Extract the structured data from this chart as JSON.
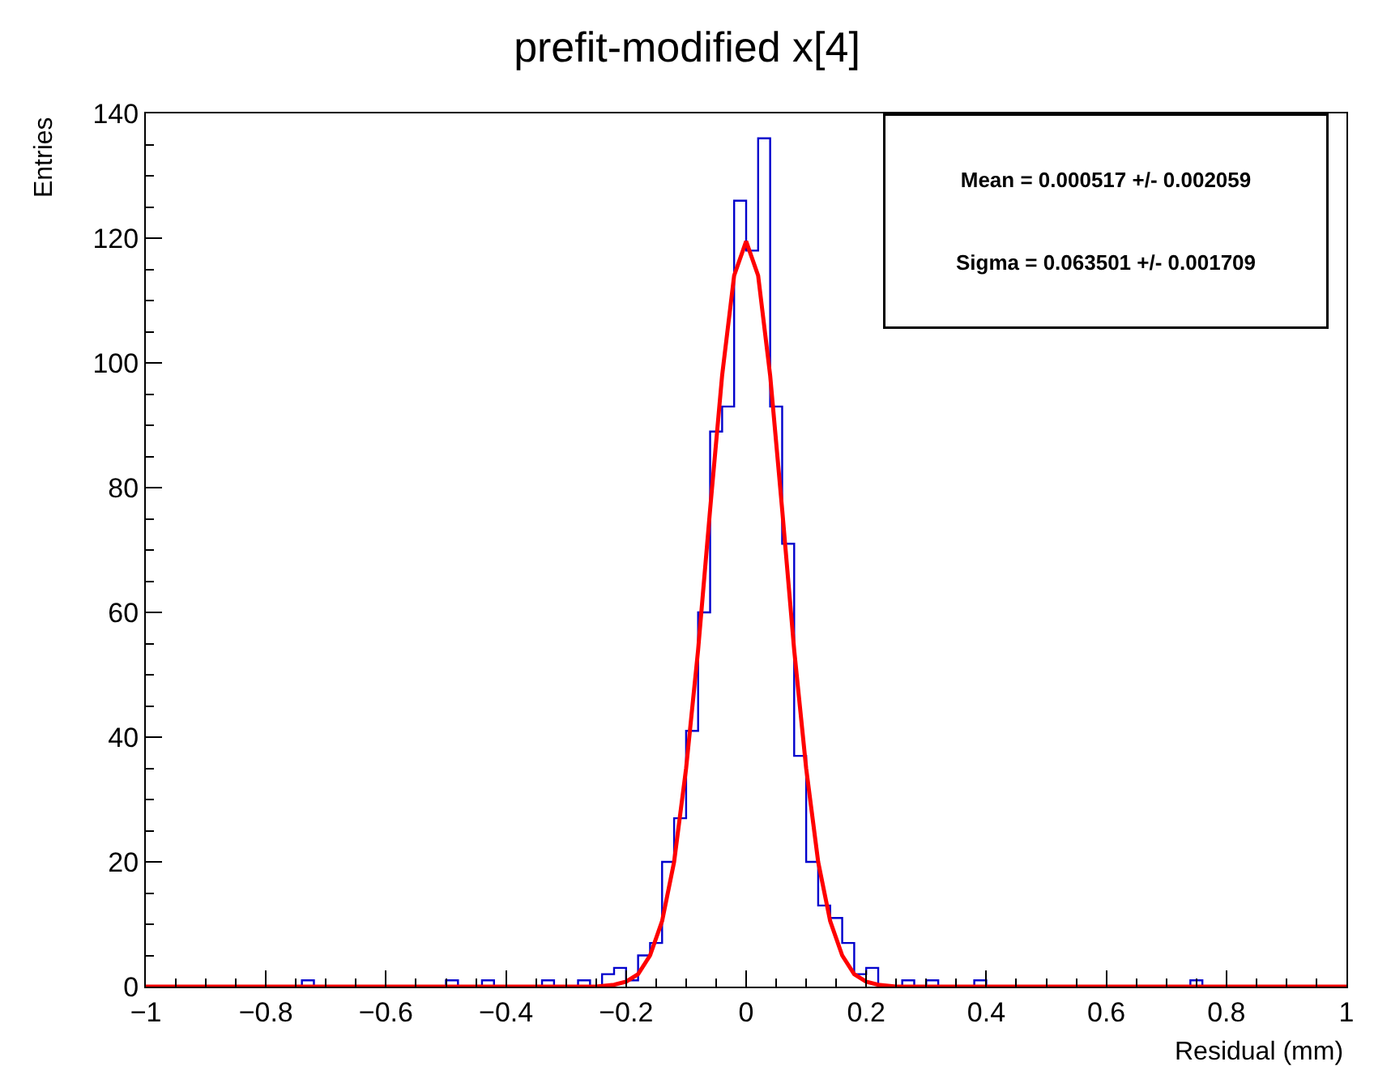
{
  "chart_data": {
    "type": "histogram",
    "title": "prefit-modified x[4]",
    "xlabel": "Residual (mm)",
    "ylabel": "Entries",
    "bins": [
      -1,
      -0.98,
      -0.96,
      -0.94,
      -0.92,
      -0.9,
      -0.88,
      -0.86,
      -0.84,
      -0.82,
      -0.8,
      -0.78,
      -0.76,
      -0.74,
      -0.72,
      -0.7,
      -0.68,
      -0.66,
      -0.64,
      -0.62,
      -0.6,
      -0.58,
      -0.56,
      -0.54,
      -0.52,
      -0.5,
      -0.48,
      -0.46,
      -0.44,
      -0.42,
      -0.4,
      -0.38,
      -0.36,
      -0.34,
      -0.32,
      -0.3,
      -0.28,
      -0.26,
      -0.24,
      -0.22,
      -0.2,
      -0.18,
      -0.16,
      -0.14,
      -0.12,
      -0.1,
      -0.08,
      -0.06,
      -0.04,
      -0.02,
      0,
      0.02,
      0.04,
      0.06,
      0.08,
      0.1,
      0.12,
      0.14,
      0.16,
      0.18,
      0.2,
      0.22,
      0.24,
      0.26,
      0.28,
      0.3,
      0.32,
      0.34,
      0.36,
      0.38,
      0.4,
      0.42,
      0.44,
      0.46,
      0.48,
      0.5,
      0.52,
      0.54,
      0.56,
      0.58,
      0.6,
      0.62,
      0.64,
      0.66,
      0.68,
      0.7,
      0.72,
      0.74,
      0.76,
      0.78,
      0.8,
      0.82,
      0.84,
      0.86,
      0.88,
      0.9,
      0.92,
      0.94,
      0.96,
      0.98,
      1
    ],
    "values": [
      0,
      0,
      0,
      0,
      0,
      0,
      0,
      0,
      0,
      0,
      0,
      0,
      0,
      1,
      0,
      0,
      0,
      0,
      0,
      0,
      0,
      0,
      0,
      0,
      0,
      1,
      0,
      0,
      1,
      0,
      0,
      0,
      0,
      1,
      0,
      0,
      1,
      0,
      2,
      3,
      1,
      5,
      7,
      20,
      27,
      41,
      60,
      89,
      93,
      126,
      118,
      136,
      93,
      71,
      37,
      20,
      13,
      11,
      7,
      2,
      3,
      0,
      0,
      1,
      0,
      1,
      0,
      0,
      0,
      1,
      0,
      0,
      0,
      0,
      0,
      0,
      0,
      0,
      0,
      0,
      0,
      0,
      0,
      0,
      0,
      0,
      0,
      1,
      0,
      0,
      0,
      0,
      0,
      0,
      0,
      0,
      0,
      0,
      0,
      0
    ],
    "color": "#0000cc",
    "series": [
      {
        "type": "line",
        "color": "#ff0000",
        "x": [
          -1,
          -0.3,
          -0.25,
          -0.22,
          -0.2,
          -0.18,
          -0.16,
          -0.14,
          -0.12,
          -0.1,
          -0.08,
          -0.06,
          -0.04,
          -0.02,
          0,
          0.02,
          0.04,
          0.06,
          0.08,
          0.1,
          0.12,
          0.14,
          0.16,
          0.18,
          0.2,
          0.22,
          0.25,
          0.3,
          1
        ],
        "values": [
          0,
          0,
          0,
          0.3,
          0.8,
          2,
          5,
          10.5,
          20,
          35,
          54,
          76.5,
          98,
          114,
          119.5,
          114,
          98,
          76.5,
          54,
          35,
          20,
          10.5,
          5,
          2,
          0.8,
          0.3,
          0,
          0,
          0
        ]
      }
    ],
    "annotations": [
      "Mean = 0.000517 +/- 0.002059",
      "Sigma = 0.063501 +/- 0.001709"
    ],
    "xlim": [
      -1,
      1
    ],
    "xticks": [
      {
        "value": -1,
        "label": "−1"
      },
      {
        "value": -0.8,
        "label": "−0.8"
      },
      {
        "value": -0.6,
        "label": "−0.6"
      },
      {
        "value": -0.4,
        "label": "−0.4"
      },
      {
        "value": -0.2,
        "label": "−0.2"
      },
      0,
      0.2,
      0.4,
      0.6,
      0.8,
      1
    ],
    "ylim": [
      0,
      140
    ],
    "yticks": [
      0,
      20,
      40,
      60,
      80,
      100,
      120,
      140
    ],
    "marker": "none",
    "line_style": "solid"
  }
}
